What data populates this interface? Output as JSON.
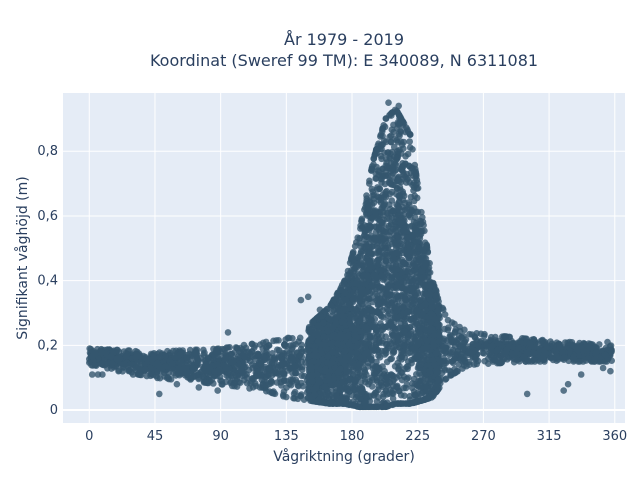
{
  "chart_data": {
    "type": "scatter",
    "title_line1": "År 1979 - 2019",
    "title_line2": "Koordinat (Sweref 99 TM): E 340089, N 6311081",
    "xlabel": "Vågriktning (grader)",
    "ylabel": "Signifikant våghöjd (m)",
    "xlim": [
      -18,
      367
    ],
    "ylim": [
      -0.04,
      0.98
    ],
    "x_ticks": [
      0,
      45,
      90,
      135,
      180,
      225,
      270,
      315,
      360
    ],
    "x_tick_labels": [
      "0",
      "45",
      "90",
      "135",
      "180",
      "225",
      "270",
      "315",
      "360"
    ],
    "y_ticks": [
      0,
      0.2,
      0.4,
      0.6,
      0.8
    ],
    "y_tick_labels": [
      "0",
      "0,2",
      "0,4",
      "0,6",
      "0,8"
    ],
    "grid": true,
    "marker_color": "#34566e",
    "envelope": [
      {
        "x": 0,
        "low": 0.14,
        "high": 0.19
      },
      {
        "x": 45,
        "low": 0.1,
        "high": 0.18
      },
      {
        "x": 90,
        "low": 0.08,
        "high": 0.19
      },
      {
        "x": 120,
        "low": 0.06,
        "high": 0.21
      },
      {
        "x": 135,
        "low": 0.04,
        "high": 0.22
      },
      {
        "x": 150,
        "low": 0.03,
        "high": 0.26
      },
      {
        "x": 165,
        "low": 0.02,
        "high": 0.32
      },
      {
        "x": 175,
        "low": 0.02,
        "high": 0.4
      },
      {
        "x": 185,
        "low": 0.01,
        "high": 0.55
      },
      {
        "x": 195,
        "low": 0.01,
        "high": 0.78
      },
      {
        "x": 203,
        "low": 0.01,
        "high": 0.9
      },
      {
        "x": 210,
        "low": 0.02,
        "high": 0.93
      },
      {
        "x": 220,
        "low": 0.02,
        "high": 0.85
      },
      {
        "x": 228,
        "low": 0.03,
        "high": 0.6
      },
      {
        "x": 235,
        "low": 0.04,
        "high": 0.4
      },
      {
        "x": 245,
        "low": 0.1,
        "high": 0.28
      },
      {
        "x": 260,
        "low": 0.14,
        "high": 0.24
      },
      {
        "x": 300,
        "low": 0.15,
        "high": 0.22
      },
      {
        "x": 358,
        "low": 0.15,
        "high": 0.2
      }
    ],
    "outliers": [
      {
        "x": 2,
        "y": 0.11
      },
      {
        "x": 6,
        "y": 0.11
      },
      {
        "x": 9,
        "y": 0.11
      },
      {
        "x": 20,
        "y": 0.12
      },
      {
        "x": 30,
        "y": 0.11
      },
      {
        "x": 48,
        "y": 0.05
      },
      {
        "x": 60,
        "y": 0.08
      },
      {
        "x": 75,
        "y": 0.07
      },
      {
        "x": 88,
        "y": 0.06
      },
      {
        "x": 95,
        "y": 0.24
      },
      {
        "x": 135,
        "y": 0.04
      },
      {
        "x": 145,
        "y": 0.34
      },
      {
        "x": 150,
        "y": 0.35
      },
      {
        "x": 158,
        "y": 0.31
      },
      {
        "x": 300,
        "y": 0.05
      },
      {
        "x": 328,
        "y": 0.08
      },
      {
        "x": 325,
        "y": 0.06
      },
      {
        "x": 337,
        "y": 0.11
      },
      {
        "x": 352,
        "y": 0.13
      },
      {
        "x": 357,
        "y": 0.12
      },
      {
        "x": 355,
        "y": 0.21
      },
      {
        "x": 205,
        "y": 0.95
      },
      {
        "x": 212,
        "y": 0.94
      }
    ]
  }
}
